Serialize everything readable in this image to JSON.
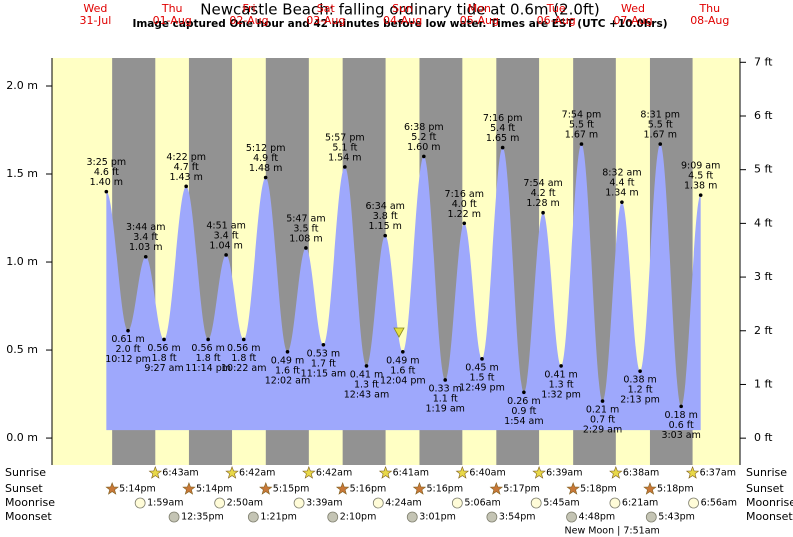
{
  "chart_data": {
    "type": "area",
    "title": "Newcastle Beach: falling  ordinary tide at 0.6m (2.0ft)",
    "subtitle": "Image captured One hour and 42 minutes before low water. Times are EST (UTC +10.0hrs)",
    "color": "#9ea8fc",
    "day_color": "#ffffc4",
    "night_color": "#929292",
    "ylim": [
      -0.153,
      2.159
    ],
    "yticks": [
      {
        "value": 0,
        "label": "0.0 m"
      },
      {
        "value": 0.5,
        "label": "0.5 m"
      },
      {
        "value": 1,
        "label": "1.0 m"
      },
      {
        "value": 1.5,
        "label": "1.5 m"
      },
      {
        "value": 2,
        "label": "2.0 m"
      }
    ],
    "y2lim": [
      -0.5,
      7.08
    ],
    "y2ticks": [
      {
        "value": 0,
        "label": "0 ft"
      },
      {
        "value": 1,
        "label": "1 ft"
      },
      {
        "value": 2,
        "label": "2 ft"
      },
      {
        "value": 3,
        "label": "3 ft"
      },
      {
        "value": 4,
        "label": "4 ft"
      },
      {
        "value": 5,
        "label": "5 ft"
      },
      {
        "value": 6,
        "label": "6 ft"
      },
      {
        "value": 7,
        "label": "7 ft"
      }
    ],
    "row_labels": {
      "sunrise": "Sunrise",
      "sunset": "Sunset",
      "moonrise": "Moonrise",
      "moonset": "Moonset"
    },
    "days": [
      {
        "weekday": "Wed",
        "date": "31-Jul",
        "sunset": "5:14pm",
        "tides": [
          {
            "time": "3:25 pm",
            "height": 1.4,
            "height_label": "1.40 m",
            "feet_label": "4.6 ft"
          },
          {
            "time": "10:12 pm",
            "height": 0.61,
            "height_label": "0.61 m",
            "feet_label": "2.0 ft"
          }
        ]
      },
      {
        "weekday": "Thu",
        "date": "01-Aug",
        "sunrise": "6:43am",
        "sunset": "5:14pm",
        "moonrise": "1:59am",
        "moonset": "12:35pm",
        "tides": [
          {
            "time": "3:44 am",
            "height": 1.03,
            "height_label": "1.03 m",
            "feet_label": "3.4 ft"
          },
          {
            "time": "9:27 am",
            "height": 0.56,
            "height_label": "0.56 m",
            "feet_label": "1.8 ft"
          },
          {
            "time": "4:22 pm",
            "height": 1.43,
            "height_label": "1.43 m",
            "feet_label": "4.7 ft"
          },
          {
            "time": "11:14 pm",
            "height": 0.56,
            "height_label": "0.56 m",
            "feet_label": "1.8 ft"
          }
        ]
      },
      {
        "weekday": "Fri",
        "date": "02-Aug",
        "sunrise": "6:42am",
        "sunset": "5:15pm",
        "moonrise": "2:50am",
        "moonset": "1:21pm",
        "tides": [
          {
            "time": "4:51 am",
            "height": 1.04,
            "height_label": "1.04 m",
            "feet_label": "3.4 ft"
          },
          {
            "time": "10:22 am",
            "height": 0.56,
            "height_label": "0.56 m",
            "feet_label": "1.8 ft"
          },
          {
            "time": "5:12 pm",
            "height": 1.48,
            "height_label": "1.48 m",
            "feet_label": "4.9 ft"
          }
        ]
      },
      {
        "weekday": "Sat",
        "date": "03-Aug",
        "sunrise": "6:42am",
        "sunset": "5:16pm",
        "moonrise": "3:39am",
        "moonset": "2:10pm",
        "tides": [
          {
            "time": "12:02 am",
            "height": 0.49,
            "height_label": "0.49 m",
            "feet_label": "1.6 ft"
          },
          {
            "time": "5:47 am",
            "height": 1.08,
            "height_label": "1.08 m",
            "feet_label": "3.5 ft"
          },
          {
            "time": "11:15 am",
            "height": 0.53,
            "height_label": "0.53 m",
            "feet_label": "1.7 ft"
          },
          {
            "time": "5:57 pm",
            "height": 1.54,
            "height_label": "1.54 m",
            "feet_label": "5.1 ft"
          }
        ]
      },
      {
        "weekday": "Sun",
        "date": "04-Aug",
        "sunrise": "6:41am",
        "sunset": "5:16pm",
        "moonrise": "4:24am",
        "moonset": "3:01pm",
        "tides": [
          {
            "time": "12:43 am",
            "height": 0.41,
            "height_label": "0.41 m",
            "feet_label": "1.3 ft"
          },
          {
            "time": "6:34 am",
            "height": 1.15,
            "height_label": "1.15 m",
            "feet_label": "3.8 ft"
          },
          {
            "time": "12:04 pm",
            "height": 0.49,
            "height_label": "0.49 m",
            "feet_label": "1.6 ft"
          },
          {
            "time": "6:38 pm",
            "height": 1.6,
            "height_label": "1.60 m",
            "feet_label": "5.2 ft"
          }
        ]
      },
      {
        "weekday": "Mon",
        "date": "05-Aug",
        "sunrise": "6:40am",
        "sunset": "5:17pm",
        "moonrise": "5:06am",
        "moonset": "3:54pm",
        "tides": [
          {
            "time": "1:19 am",
            "height": 0.33,
            "height_label": "0.33 m",
            "feet_label": "1.1 ft"
          },
          {
            "time": "7:16 am",
            "height": 1.22,
            "height_label": "1.22 m",
            "feet_label": "4.0 ft"
          },
          {
            "time": "12:49 pm",
            "height": 0.45,
            "height_label": "0.45 m",
            "feet_label": "1.5 ft"
          },
          {
            "time": "7:16 pm",
            "height": 1.65,
            "height_label": "1.65 m",
            "feet_label": "5.4 ft"
          }
        ]
      },
      {
        "weekday": "Tue",
        "date": "06-Aug",
        "sunrise": "6:39am",
        "sunset": "5:18pm",
        "moonrise": "5:45am",
        "moonset": "4:48pm",
        "note": "New Moon | 7:51am",
        "tides": [
          {
            "time": "1:54 am",
            "height": 0.26,
            "height_label": "0.26 m",
            "feet_label": "0.9 ft"
          },
          {
            "time": "7:54 am",
            "height": 1.28,
            "height_label": "1.28 m",
            "feet_label": "4.2 ft"
          },
          {
            "time": "1:32 pm",
            "height": 0.41,
            "height_label": "0.41 m",
            "feet_label": "1.3 ft"
          },
          {
            "time": "7:54 pm",
            "height": 1.67,
            "height_label": "1.67 m",
            "feet_label": "5.5 ft"
          }
        ]
      },
      {
        "weekday": "Wed",
        "date": "07-Aug",
        "sunrise": "6:38am",
        "sunset": "5:18pm",
        "moonrise": "6:21am",
        "moonset": "5:43pm",
        "tides": [
          {
            "time": "2:29 am",
            "height": 0.21,
            "height_label": "0.21 m",
            "feet_label": "0.7 ft"
          },
          {
            "time": "8:32 am",
            "height": 1.34,
            "height_label": "1.34 m",
            "feet_label": "4.4 ft"
          },
          {
            "time": "2:13 pm",
            "height": 0.38,
            "height_label": "0.38 m",
            "feet_label": "1.2 ft"
          },
          {
            "time": "8:31 pm",
            "height": 1.67,
            "height_label": "1.67 m",
            "feet_label": "5.5 ft"
          }
        ]
      },
      {
        "weekday": "Thu",
        "date": "08-Aug",
        "sunrise": "6:37am",
        "moonrise": "6:56am",
        "tides": [
          {
            "time": "3:03 am",
            "height": 0.18,
            "height_label": "0.18 m",
            "feet_label": "0.6 ft"
          },
          {
            "time": "9:09 am",
            "height": 1.38,
            "height_label": "1.38 m",
            "feet_label": "4.5 ft"
          }
        ]
      }
    ]
  }
}
